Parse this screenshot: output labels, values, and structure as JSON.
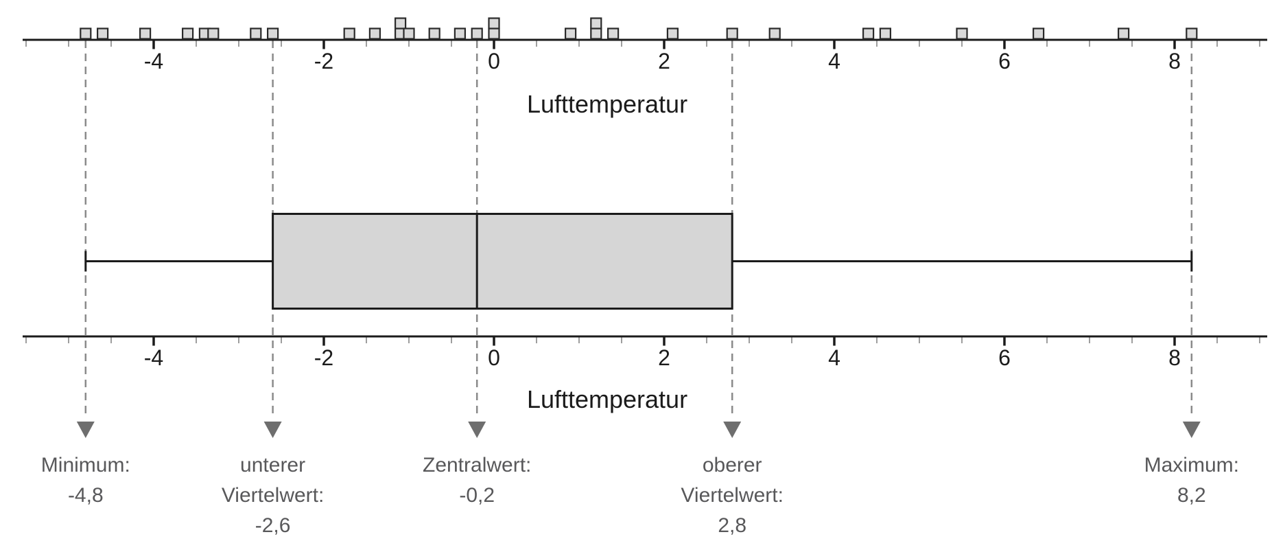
{
  "figure": {
    "background": "#ffffff"
  },
  "chart_data": {
    "type": "boxplot",
    "subtype": "dotplot-with-boxplot",
    "xlabel": "Lufttemperatur",
    "values": [
      -4.8,
      -4.6,
      -4.1,
      -3.6,
      -3.4,
      -3.3,
      -2.8,
      -2.6,
      -1.7,
      -1.4,
      -1.1,
      -1.1,
      -1.0,
      -0.7,
      -0.4,
      -0.2,
      0.0,
      0.0,
      0.9,
      1.2,
      1.2,
      1.4,
      2.1,
      2.8,
      3.3,
      4.4,
      4.6,
      5.5,
      6.4,
      7.4,
      8.2
    ],
    "stats": {
      "minimum": -4.8,
      "lower_quartile": -2.6,
      "median": -0.2,
      "upper_quartile": 2.8,
      "maximum": 8.2
    },
    "axis": {
      "min": -5.5,
      "max": 9.0,
      "minor_step": 0.5,
      "major_step": 2,
      "major_tick_values": [
        -4,
        -2,
        0,
        2,
        4,
        6,
        8
      ],
      "major_tick_labels": [
        "-4",
        "-2",
        "0",
        "2",
        "4",
        "6",
        "8"
      ],
      "grid": false
    },
    "annotations": [
      {
        "key": "minimum",
        "value": -4.8,
        "lines": [
          "Minimum:",
          "-4,8"
        ]
      },
      {
        "key": "lower-quartile",
        "value": -2.6,
        "lines": [
          "unterer",
          "Viertelwert:",
          "-2,6"
        ]
      },
      {
        "key": "median",
        "value": -0.2,
        "lines": [
          "Zentralwert:",
          "-0,2"
        ]
      },
      {
        "key": "upper-quartile",
        "value": 2.8,
        "lines": [
          "oberer",
          "Viertelwert:",
          "2,8"
        ]
      },
      {
        "key": "maximum",
        "value": 8.2,
        "lines": [
          "Maximum:",
          "8,2"
        ]
      }
    ]
  },
  "colors": {
    "axis": "#1b1b1b",
    "axis_text": "#1b1b1b",
    "minor_tick": "#9e9e9e",
    "square_fill": "#d9d9d9",
    "square_border": "#2a2a2a",
    "box_fill": "#d6d6d6",
    "box_border": "#1b1b1b",
    "dashed_guide": "#8a8a8a",
    "arrow": "#6e6e6e",
    "annotation_text": "#58585a"
  }
}
